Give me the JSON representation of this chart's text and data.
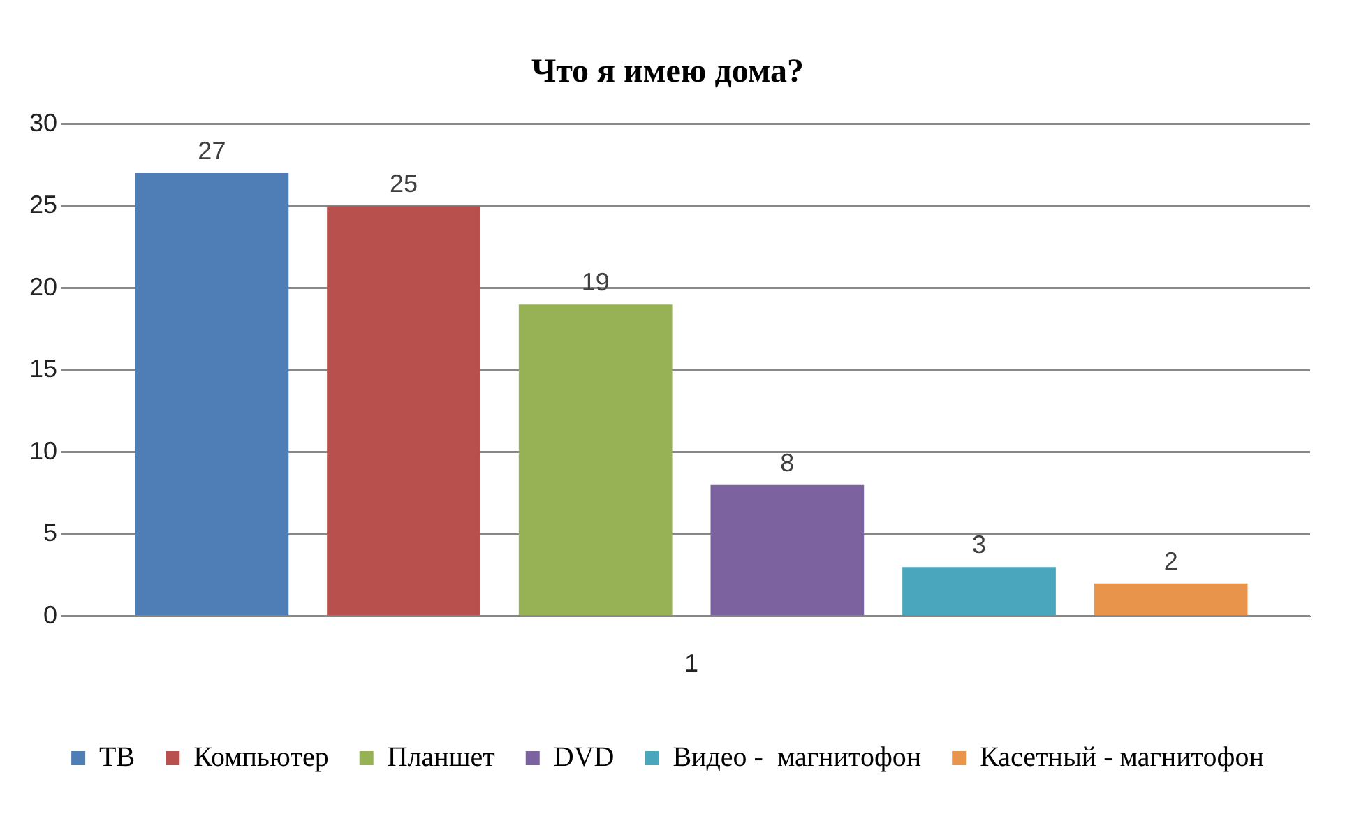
{
  "chart_data": {
    "type": "bar",
    "title": "Что я имею дома?",
    "categories": [
      "1"
    ],
    "series": [
      {
        "name": "ТВ",
        "color": "#4f7db5",
        "values": [
          27
        ]
      },
      {
        "name": "Компьютер",
        "color": "#b8504d",
        "values": [
          25
        ]
      },
      {
        "name": "Планшет",
        "color": "#97b255",
        "values": [
          19
        ]
      },
      {
        "name": "DVD",
        "color": "#7d62a0",
        "values": [
          8
        ]
      },
      {
        "name": "Видео -  магнитофон",
        "color": "#4aa6bd",
        "values": [
          3
        ]
      },
      {
        "name": "Касетный - магнитофон",
        "color": "#e8944a",
        "values": [
          2
        ]
      }
    ],
    "ylim": [
      0,
      30
    ],
    "yticks": [
      0,
      5,
      10,
      15,
      20,
      25,
      30
    ],
    "grid": "y",
    "legend": "bottom",
    "data_labels": true
  }
}
